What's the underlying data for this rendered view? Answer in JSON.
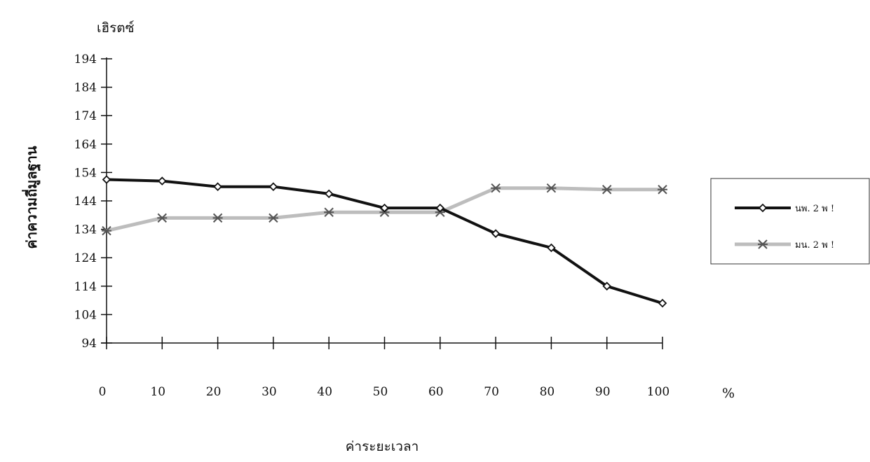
{
  "chart_data": {
    "type": "line",
    "title": "",
    "unit_label": "เฮิรตซ์",
    "ylabel": "ค่าความถี่มูลฐาน",
    "xlabel": "ค่าระยะเวลา",
    "x_unit": "%",
    "x": [
      0,
      10,
      20,
      30,
      40,
      50,
      60,
      70,
      80,
      90,
      100
    ],
    "y_ticks": [
      94,
      104,
      114,
      124,
      134,
      144,
      154,
      164,
      174,
      184,
      194
    ],
    "ylim": [
      94,
      194
    ],
    "grid": false,
    "legend_position": "right",
    "series": [
      {
        "name": "นพ. 2 พ !",
        "color": "#111111",
        "marker": "diamond",
        "values": [
          151.5,
          151,
          149,
          149,
          146.5,
          141.5,
          141.5,
          132.5,
          127.5,
          114,
          108
        ]
      },
      {
        "name": "มน. 2 พ !",
        "color": "#bdbdbd",
        "marker": "asterisk",
        "values": [
          133.5,
          138,
          138,
          138,
          140,
          140,
          140,
          148.5,
          148.5,
          148,
          148
        ]
      }
    ]
  }
}
